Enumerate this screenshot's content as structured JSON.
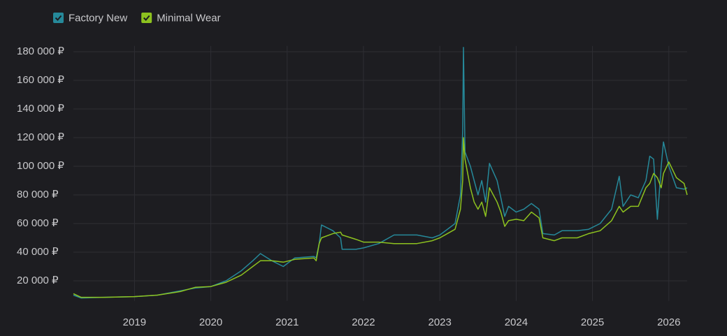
{
  "chart_data": {
    "type": "line",
    "x": [
      2018.2,
      2018.3,
      2018.6,
      2019.0,
      2019.3,
      2019.6,
      2019.8,
      2020.0,
      2020.2,
      2020.4,
      2020.55,
      2020.65,
      2020.8,
      2020.95,
      2021.1,
      2021.35,
      2021.38,
      2021.42,
      2021.45,
      2021.6,
      2021.7,
      2021.72,
      2021.9,
      2022.0,
      2022.2,
      2022.4,
      2022.7,
      2022.9,
      2023.0,
      2023.2,
      2023.27,
      2023.3,
      2023.31,
      2023.33,
      2023.4,
      2023.45,
      2023.5,
      2023.55,
      2023.6,
      2023.65,
      2023.75,
      2023.8,
      2023.85,
      2023.9,
      2024.0,
      2024.1,
      2024.2,
      2024.3,
      2024.35,
      2024.5,
      2024.6,
      2024.8,
      2024.95,
      2025.1,
      2025.25,
      2025.35,
      2025.4,
      2025.5,
      2025.6,
      2025.7,
      2025.75,
      2025.8,
      2025.85,
      2025.9,
      2025.93,
      2026.0,
      2026.1,
      2026.2,
      2026.24
    ],
    "series": [
      {
        "name": "Factory New",
        "color": "#26899a",
        "values": [
          10000,
          8000,
          8500,
          9000,
          10000,
          13000,
          15000,
          16000,
          20000,
          27000,
          34000,
          39000,
          34000,
          30000,
          36000,
          37000,
          36000,
          46000,
          59000,
          55000,
          50000,
          42000,
          42000,
          43000,
          46000,
          52000,
          52000,
          50000,
          52000,
          60000,
          80000,
          125000,
          183000,
          110000,
          100000,
          90000,
          80000,
          90000,
          75000,
          102000,
          90000,
          78000,
          65000,
          72000,
          68000,
          70000,
          74000,
          70000,
          53000,
          52000,
          55000,
          55000,
          56000,
          60000,
          70000,
          93000,
          72000,
          80000,
          78000,
          90000,
          107000,
          105000,
          63000,
          100000,
          117000,
          100000,
          85000,
          84000,
          85000
        ]
      },
      {
        "name": "Minimal Wear",
        "color": "#8dc21f",
        "values": [
          11000,
          8500,
          8500,
          9000,
          10000,
          12500,
          15500,
          16000,
          19000,
          24000,
          30000,
          34000,
          34000,
          33000,
          35000,
          36000,
          34000,
          46000,
          50000,
          53000,
          54000,
          52000,
          49000,
          47000,
          47000,
          46000,
          46000,
          48000,
          50000,
          56000,
          70000,
          90000,
          120000,
          105000,
          85000,
          75000,
          70000,
          75000,
          65000,
          85000,
          75000,
          68000,
          58000,
          62000,
          63000,
          62000,
          68000,
          64000,
          50000,
          48000,
          50000,
          50000,
          53000,
          55000,
          62000,
          72000,
          68000,
          72000,
          72000,
          85000,
          88000,
          95000,
          92000,
          85000,
          95000,
          103000,
          92000,
          88000,
          80000
        ]
      }
    ],
    "xlim": [
      2018.2,
      2026.24
    ],
    "xticks": [
      2019,
      2020,
      2021,
      2022,
      2023,
      2024,
      2025,
      2026
    ],
    "ylim": [
      6000,
      184000
    ],
    "yticks": [
      {
        "value": 20000,
        "label": "20 000 ₽"
      },
      {
        "value": 40000,
        "label": "40 000 ₽"
      },
      {
        "value": 60000,
        "label": "60 000 ₽"
      },
      {
        "value": 80000,
        "label": "80 000 ₽"
      },
      {
        "value": 100000,
        "label": "100 000 ₽"
      },
      {
        "value": 120000,
        "label": "120 000 ₽"
      },
      {
        "value": 140000,
        "label": "140 000 ₽"
      },
      {
        "value": 160000,
        "label": "160 000 ₽"
      },
      {
        "value": 180000,
        "label": "180 000 ₽"
      }
    ],
    "grid": true
  }
}
